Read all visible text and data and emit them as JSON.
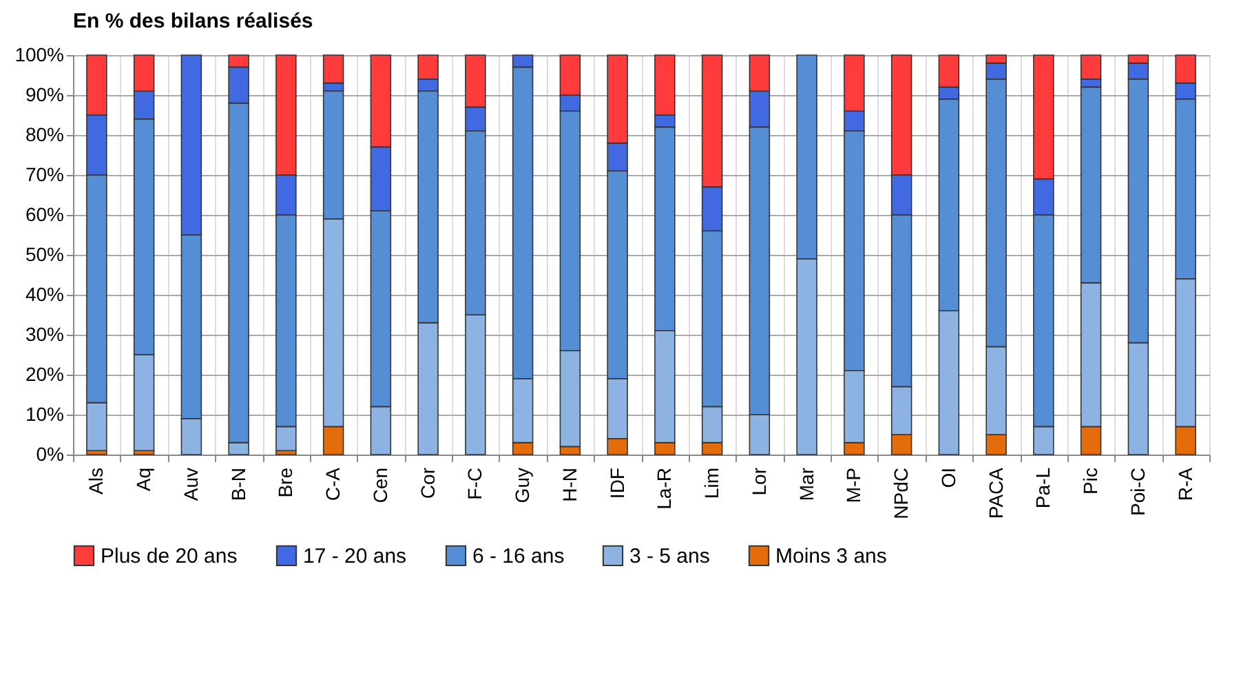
{
  "chart_data": {
    "type": "bar",
    "title": "En % des bilans réalisés",
    "stacked": true,
    "categories": [
      "Als",
      "Aq",
      "Auv",
      "B-N",
      "Bre",
      "C-A",
      "Cen",
      "Cor",
      "F-C",
      "Guy",
      "H-N",
      "IDF",
      "La-R",
      "Lim",
      "Lor",
      "Mar",
      "M-P",
      "NPdC",
      "OI",
      "PACA",
      "Pa-L",
      "Pic",
      "Poi-C",
      "R-A"
    ],
    "series": [
      {
        "name": "Moins 3 ans",
        "color": "#e46c0a",
        "values": [
          1,
          1,
          0,
          0,
          1,
          7,
          0,
          0,
          0,
          3,
          2,
          4,
          3,
          3,
          0,
          0,
          3,
          5,
          0,
          5,
          0,
          7,
          0,
          7
        ]
      },
      {
        "name": "3 - 5 ans",
        "color": "#8db3e2",
        "values": [
          12,
          24,
          9,
          3,
          6,
          52,
          12,
          33,
          35,
          16,
          24,
          15,
          28,
          9,
          10,
          49,
          18,
          12,
          36,
          22,
          7,
          36,
          28,
          37
        ]
      },
      {
        "name": "6 - 16 ans",
        "color": "#558ed5",
        "values": [
          57,
          59,
          46,
          85,
          53,
          32,
          49,
          58,
          46,
          78,
          60,
          52,
          51,
          44,
          72,
          51,
          60,
          43,
          53,
          67,
          53,
          49,
          66,
          45
        ]
      },
      {
        "name": "17 - 20 ans",
        "color": "#4169e1",
        "values": [
          15,
          7,
          45,
          9,
          10,
          2,
          16,
          3,
          6,
          3,
          4,
          7,
          3,
          11,
          9,
          0,
          5,
          10,
          3,
          4,
          9,
          2,
          4,
          4
        ]
      },
      {
        "name": "Plus de 20 ans",
        "color": "#ff3b3b",
        "values": [
          15,
          9,
          0,
          3,
          30,
          7,
          23,
          6,
          13,
          0,
          10,
          22,
          15,
          33,
          9,
          0,
          14,
          30,
          8,
          2,
          31,
          6,
          2,
          7
        ]
      }
    ],
    "ylim": [
      0,
      100
    ],
    "yticks": [
      {
        "value": 0,
        "label": "0%"
      },
      {
        "value": 10,
        "label": "10%"
      },
      {
        "value": 20,
        "label": "20%"
      },
      {
        "value": 30,
        "label": "30%"
      },
      {
        "value": 40,
        "label": "40%"
      },
      {
        "value": 50,
        "label": "50%"
      },
      {
        "value": 60,
        "label": "60%"
      },
      {
        "value": 70,
        "label": "70%"
      },
      {
        "value": 80,
        "label": "80%"
      },
      {
        "value": 90,
        "label": "90%"
      },
      {
        "value": 100,
        "label": "100%"
      }
    ],
    "grid": true,
    "legend": "bottom"
  }
}
